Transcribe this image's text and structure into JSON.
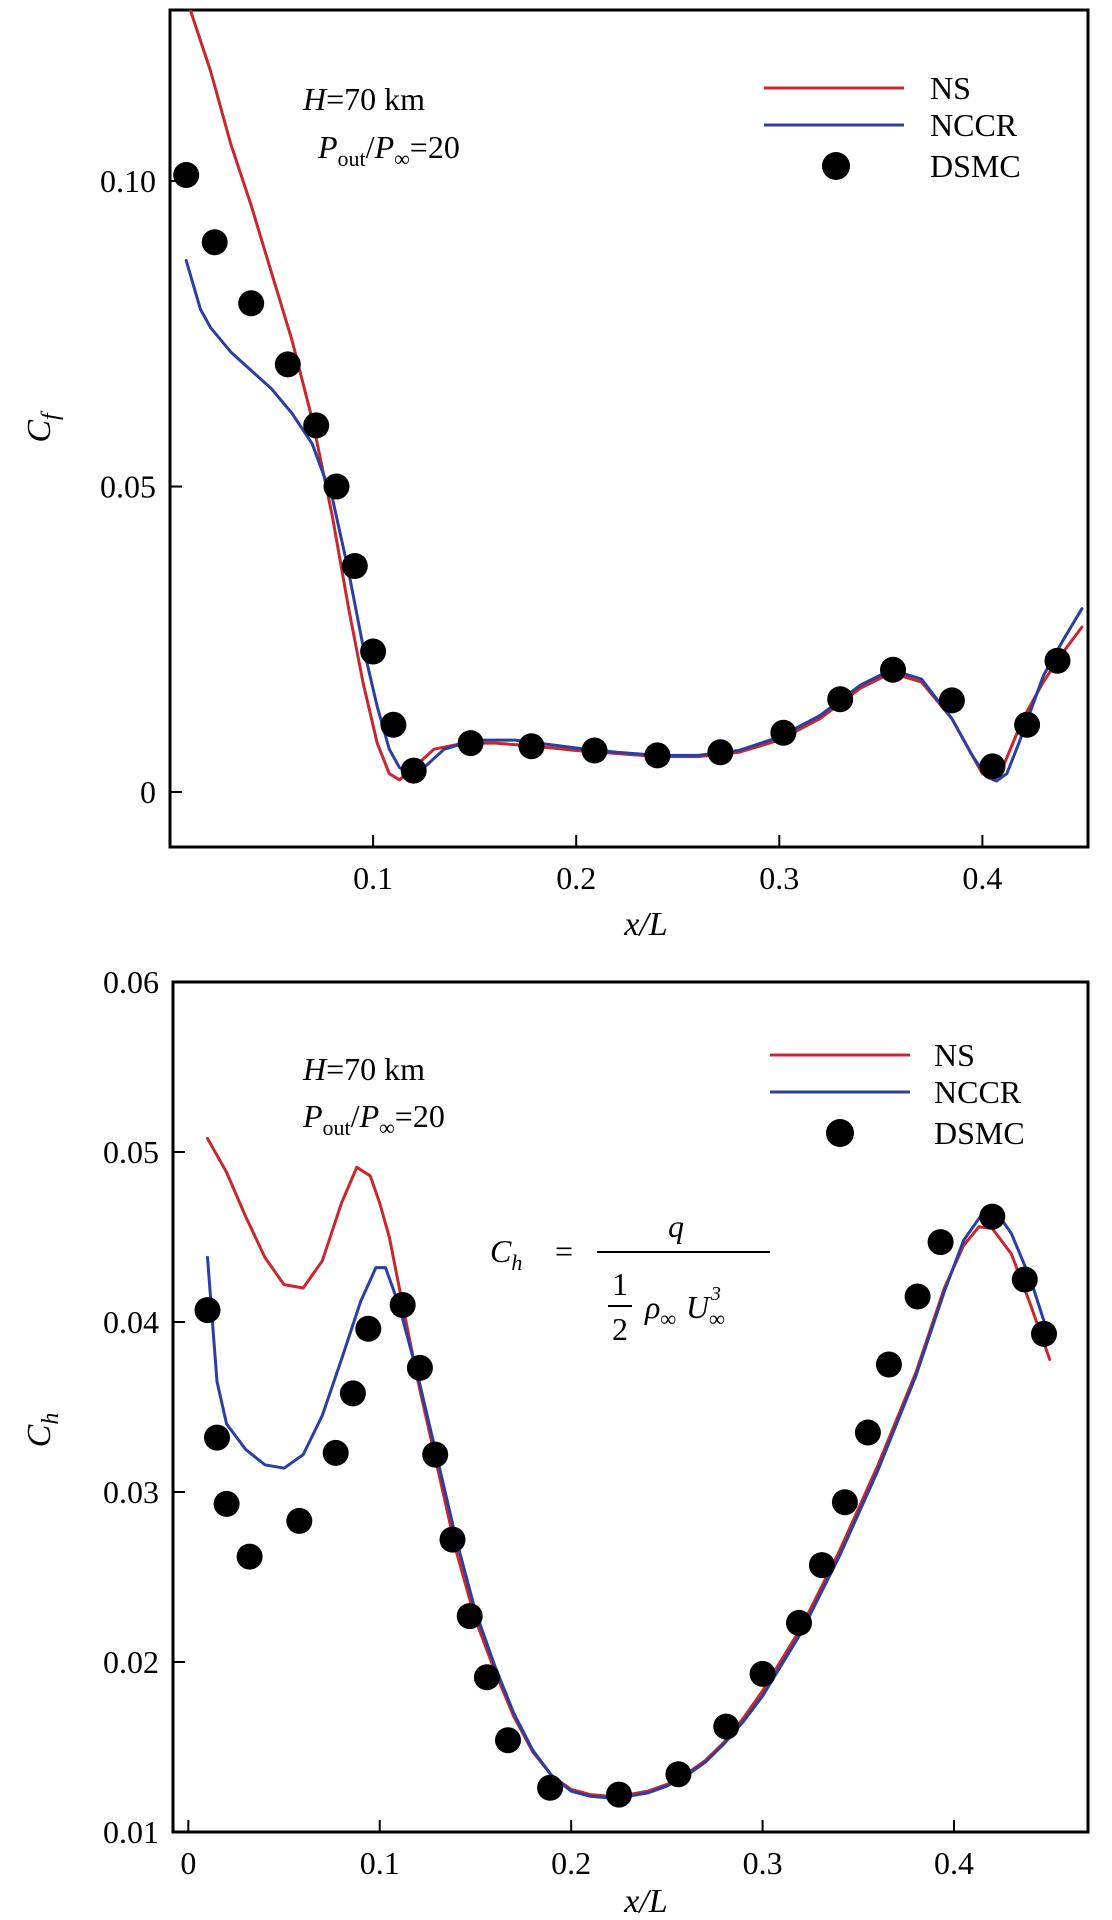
{
  "chart_data": [
    {
      "type": "line",
      "ylabel": "C",
      "ylabel_sub": "f",
      "xlabel": "x/L",
      "xlim": [
        0.0,
        0.452
      ],
      "ylim": [
        -0.009,
        0.128
      ],
      "xticks": [
        0.1,
        0.2,
        0.3,
        0.4
      ],
      "xtick_labels": [
        "0.1",
        "0.2",
        "0.3",
        "0.4"
      ],
      "yticks": [
        0,
        0.05,
        0.1
      ],
      "ytick_labels": [
        "0",
        "0.05",
        "0.10"
      ],
      "annotations": {
        "line1": "=70 km",
        "line1_italic": "H",
        "p_out": "P",
        "p_out_sub": "out",
        "p_inf": "P",
        "p_inf_sub": "∞",
        "ratio": "=20"
      },
      "legend": {
        "position": "top-right",
        "entries": [
          "NS",
          "NCCR",
          "DSMC"
        ]
      },
      "series": [
        {
          "name": "NS",
          "kind": "line",
          "color": "#c8282d",
          "x": [
            0.01,
            0.02,
            0.03,
            0.04,
            0.05,
            0.06,
            0.07,
            0.08,
            0.088,
            0.095,
            0.102,
            0.108,
            0.113,
            0.12,
            0.13,
            0.145,
            0.16,
            0.18,
            0.2,
            0.22,
            0.24,
            0.26,
            0.28,
            0.3,
            0.32,
            0.34,
            0.355,
            0.37,
            0.385,
            0.395,
            0.4,
            0.405,
            0.41,
            0.415,
            0.42,
            0.43,
            0.44,
            0.449
          ],
          "y": [
            0.128,
            0.118,
            0.106,
            0.096,
            0.085,
            0.074,
            0.061,
            0.045,
            0.03,
            0.018,
            0.008,
            0.003,
            0.002,
            0.004,
            0.007,
            0.008,
            0.008,
            0.0075,
            0.0068,
            0.0063,
            0.0058,
            0.0058,
            0.0065,
            0.0085,
            0.012,
            0.017,
            0.0195,
            0.018,
            0.012,
            0.006,
            0.003,
            0.0025,
            0.004,
            0.008,
            0.012,
            0.018,
            0.023,
            0.027
          ]
        },
        {
          "name": "NCCR",
          "kind": "line",
          "color": "#2b3fa0",
          "x": [
            0.008,
            0.015,
            0.02,
            0.03,
            0.04,
            0.05,
            0.06,
            0.07,
            0.08,
            0.088,
            0.095,
            0.102,
            0.108,
            0.113,
            0.118,
            0.125,
            0.135,
            0.15,
            0.17,
            0.2,
            0.22,
            0.24,
            0.26,
            0.28,
            0.3,
            0.32,
            0.34,
            0.355,
            0.37,
            0.385,
            0.395,
            0.402,
            0.407,
            0.412,
            0.418,
            0.43,
            0.44,
            0.449
          ],
          "y": [
            0.087,
            0.079,
            0.076,
            0.072,
            0.069,
            0.066,
            0.062,
            0.057,
            0.048,
            0.036,
            0.024,
            0.014,
            0.007,
            0.004,
            0.003,
            0.004,
            0.007,
            0.0085,
            0.0085,
            0.0072,
            0.0065,
            0.006,
            0.006,
            0.0068,
            0.009,
            0.0125,
            0.0175,
            0.02,
            0.0185,
            0.012,
            0.006,
            0.0025,
            0.0018,
            0.003,
            0.008,
            0.019,
            0.025,
            0.03
          ]
        },
        {
          "name": "DSMC",
          "kind": "scatter",
          "color": "#000000",
          "x": [
            0.008,
            0.022,
            0.04,
            0.058,
            0.072,
            0.082,
            0.091,
            0.1,
            0.11,
            0.12,
            0.148,
            0.178,
            0.209,
            0.24,
            0.271,
            0.302,
            0.33,
            0.356,
            0.385,
            0.405,
            0.422,
            0.437
          ],
          "y": [
            0.101,
            0.09,
            0.08,
            0.07,
            0.06,
            0.05,
            0.037,
            0.023,
            0.011,
            0.0035,
            0.008,
            0.0075,
            0.0068,
            0.006,
            0.0065,
            0.0097,
            0.0152,
            0.02,
            0.015,
            0.0042,
            0.011,
            0.0215
          ]
        }
      ]
    },
    {
      "type": "line",
      "ylabel": "C",
      "ylabel_sub": "h",
      "xlabel": "x/L",
      "xlim": [
        -0.008,
        0.47
      ],
      "ylim": [
        0.01,
        0.06
      ],
      "xticks": [
        0,
        0.1,
        0.2,
        0.3,
        0.4
      ],
      "xtick_labels": [
        "0",
        "0.1",
        "0.2",
        "0.3",
        "0.4"
      ],
      "yticks": [
        0.01,
        0.02,
        0.03,
        0.04,
        0.05,
        0.06
      ],
      "ytick_labels": [
        "0.01",
        "0.02",
        "0.03",
        "0.04",
        "0.05",
        "0.06"
      ],
      "annotations": {
        "line1": "=70 km",
        "line1_italic": "H",
        "p_out": "P",
        "p_out_sub": "out",
        "p_inf": "P",
        "p_inf_sub": "∞",
        "ratio": "=20"
      },
      "formula": {
        "lhs": "C",
        "lhs_sub": "h",
        "eq": "=",
        "numerator": "q",
        "half_num": "1",
        "half_den": "2",
        "rho": "ρ",
        "rho_sub": "∞",
        "u": "U",
        "u_sub": "∞",
        "u_sup": "3"
      },
      "legend": {
        "position": "top-right",
        "entries": [
          "NS",
          "NCCR",
          "DSMC"
        ]
      },
      "series": [
        {
          "name": "NS",
          "kind": "line",
          "color": "#c8282d",
          "x": [
            0.01,
            0.02,
            0.03,
            0.04,
            0.05,
            0.06,
            0.07,
            0.08,
            0.088,
            0.095,
            0.1,
            0.105,
            0.112,
            0.12,
            0.13,
            0.14,
            0.15,
            0.16,
            0.17,
            0.18,
            0.19,
            0.2,
            0.21,
            0.22,
            0.23,
            0.24,
            0.25,
            0.26,
            0.27,
            0.28,
            0.29,
            0.3,
            0.32,
            0.34,
            0.36,
            0.38,
            0.395,
            0.405,
            0.413,
            0.42,
            0.43,
            0.44,
            0.45
          ],
          "y": [
            0.0508,
            0.0488,
            0.0462,
            0.0438,
            0.0422,
            0.042,
            0.0436,
            0.047,
            0.0491,
            0.0486,
            0.047,
            0.045,
            0.041,
            0.0365,
            0.0315,
            0.0265,
            0.0225,
            0.0195,
            0.0168,
            0.0147,
            0.0133,
            0.0125,
            0.0122,
            0.0121,
            0.0122,
            0.0124,
            0.0128,
            0.0134,
            0.0142,
            0.0153,
            0.0167,
            0.0183,
            0.022,
            0.0265,
            0.0315,
            0.037,
            0.042,
            0.0445,
            0.0456,
            0.0455,
            0.044,
            0.041,
            0.0378
          ]
        },
        {
          "name": "NCCR",
          "kind": "line",
          "color": "#2b3fa0",
          "x": [
            0.01,
            0.015,
            0.02,
            0.03,
            0.04,
            0.05,
            0.06,
            0.07,
            0.08,
            0.09,
            0.098,
            0.103,
            0.11,
            0.12,
            0.13,
            0.14,
            0.15,
            0.16,
            0.17,
            0.18,
            0.19,
            0.2,
            0.21,
            0.22,
            0.23,
            0.24,
            0.25,
            0.26,
            0.27,
            0.28,
            0.29,
            0.3,
            0.32,
            0.34,
            0.36,
            0.38,
            0.395,
            0.405,
            0.415,
            0.422,
            0.43,
            0.44,
            0.45
          ],
          "y": [
            0.0438,
            0.0365,
            0.034,
            0.0325,
            0.0316,
            0.0314,
            0.0322,
            0.0345,
            0.0378,
            0.0412,
            0.0432,
            0.0432,
            0.041,
            0.0368,
            0.032,
            0.0272,
            0.023,
            0.0198,
            0.017,
            0.0148,
            0.0133,
            0.0124,
            0.0121,
            0.012,
            0.0121,
            0.0123,
            0.0127,
            0.0133,
            0.0141,
            0.0152,
            0.0165,
            0.018,
            0.0217,
            0.0262,
            0.0312,
            0.0368,
            0.0418,
            0.0448,
            0.0464,
            0.0465,
            0.0452,
            0.0425,
            0.039
          ]
        },
        {
          "name": "DSMC",
          "kind": "scatter",
          "color": "#000000",
          "x": [
            0.01,
            0.015,
            0.02,
            0.032,
            0.058,
            0.077,
            0.086,
            0.094,
            0.112,
            0.121,
            0.129,
            0.138,
            0.147,
            0.156,
            0.167,
            0.189,
            0.225,
            0.256,
            0.281,
            0.3,
            0.319,
            0.331,
            0.343,
            0.355,
            0.366,
            0.381,
            0.393,
            0.42,
            0.437,
            0.447
          ],
          "y": [
            0.0407,
            0.0332,
            0.0293,
            0.0262,
            0.0283,
            0.0323,
            0.0358,
            0.0396,
            0.041,
            0.0373,
            0.0322,
            0.0272,
            0.0227,
            0.0191,
            0.0154,
            0.0126,
            0.0122,
            0.0134,
            0.0162,
            0.0193,
            0.0223,
            0.0257,
            0.0294,
            0.0335,
            0.0375,
            0.0415,
            0.0447,
            0.0462,
            0.0425,
            0.0393
          ]
        }
      ]
    }
  ]
}
